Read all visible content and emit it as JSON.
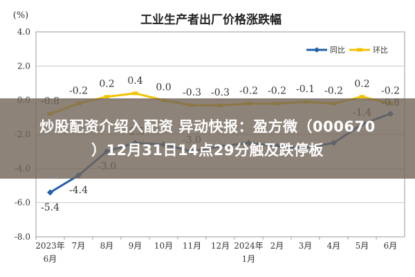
{
  "chart_data": {
    "type": "line",
    "title": "工业生产者出厂价格涨跌幅",
    "ylabel": "(%)",
    "ylim": [
      -8.0,
      4.0
    ],
    "yticks": [
      "4.0",
      "2.0",
      "0.0",
      "-2.0",
      "-4.0",
      "-6.0",
      "-8.0"
    ],
    "ytick_values": [
      4,
      2,
      0,
      -2,
      -4,
      -6,
      -8
    ],
    "categories": [
      "2023年6月",
      "7月",
      "8月",
      "9月",
      "10月",
      "11月",
      "12月",
      "2024年1月",
      "2月",
      "3月",
      "4月",
      "5月",
      "6月"
    ],
    "category_lines": [
      [
        "2023年",
        "6月"
      ],
      [
        "7月"
      ],
      [
        "8月"
      ],
      [
        "9月"
      ],
      [
        "10月"
      ],
      [
        "11月"
      ],
      [
        "12月"
      ],
      [
        "2024年",
        "1月"
      ],
      [
        "2月"
      ],
      [
        "3月"
      ],
      [
        "4月"
      ],
      [
        "5月"
      ],
      [
        "6月"
      ]
    ],
    "grid": true,
    "legend_position": "top-right",
    "series": [
      {
        "name": "同比",
        "color": "#1f5fa8",
        "values": [
          -5.4,
          -4.4,
          -3.0,
          -2.5,
          -2.6,
          -3.0,
          -2.7,
          -2.5,
          -2.7,
          -2.8,
          -2.5,
          -1.4,
          -0.8
        ],
        "labels": [
          "-5.4",
          "-4.4",
          "-3.0",
          "-2.5",
          "",
          "-3.0",
          "",
          "",
          "",
          "",
          "",
          "-1.4",
          "-0.8"
        ]
      },
      {
        "name": "环比",
        "color": "#f2c200",
        "values": [
          -0.8,
          -0.2,
          0.2,
          0.4,
          0.0,
          -0.3,
          -0.3,
          -0.2,
          -0.2,
          -0.1,
          -0.2,
          0.2,
          -0.2
        ],
        "labels": [
          "-0.8",
          "-0.2",
          "0.2",
          "0.4",
          "0.0",
          "-0.3",
          "-0.3",
          "-0.2",
          "-0.2",
          "-0.1",
          "-0.2",
          "0.2",
          "-0.2"
        ]
      }
    ]
  },
  "overlay": {
    "line1": "炒股配资介绍入配资 异动快报：盈方微（000670",
    "line2": "）12月31日14点29分触及跌停板"
  }
}
